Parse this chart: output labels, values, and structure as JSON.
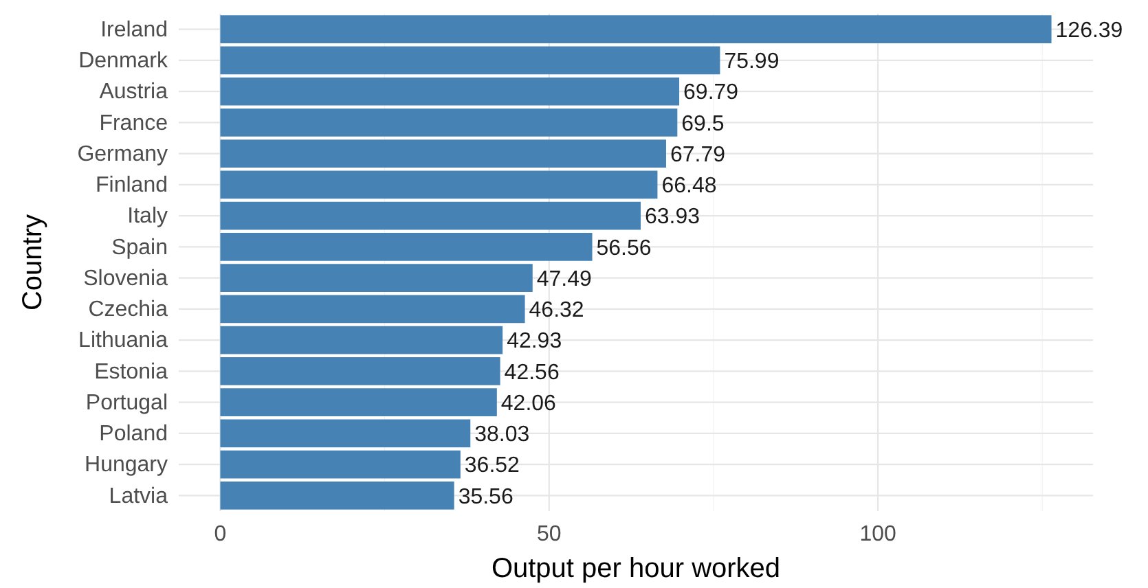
{
  "chart_data": {
    "type": "bar",
    "orientation": "horizontal",
    "xlabel": "Output per hour worked",
    "ylabel": "Country",
    "categories": [
      "Ireland",
      "Denmark",
      "Austria",
      "France",
      "Germany",
      "Finland",
      "Italy",
      "Spain",
      "Slovenia",
      "Czechia",
      "Lithuania",
      "Estonia",
      "Portugal",
      "Poland",
      "Hungary",
      "Latvia"
    ],
    "values": [
      126.39,
      75.99,
      69.79,
      69.5,
      67.79,
      66.48,
      63.93,
      56.56,
      47.49,
      46.32,
      42.93,
      42.56,
      42.06,
      38.03,
      36.52,
      35.56
    ],
    "color": "#4682b4",
    "data_labels": true,
    "grid": true,
    "xlim": [
      -6.32,
      132.71
    ],
    "xticks": [
      0,
      {
        "value": 25,
        "label": null
      },
      50,
      {
        "value": 75,
        "label": null
      },
      100,
      {
        "value": 125,
        "label": null
      }
    ]
  }
}
